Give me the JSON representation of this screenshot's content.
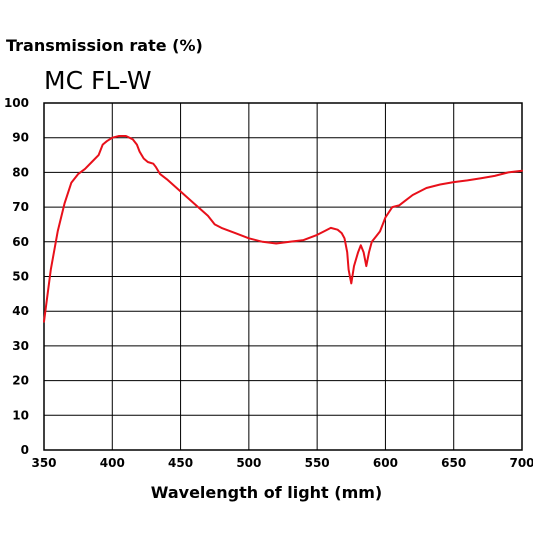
{
  "chart_data": {
    "type": "line",
    "title": "MC FL-W",
    "ylabel": "Transmission rate (%)",
    "xlabel": "Wavelength of light (mm)",
    "xlim": [
      350,
      700
    ],
    "ylim": [
      0,
      100
    ],
    "x_ticks": [
      350,
      400,
      450,
      500,
      550,
      600,
      650,
      700
    ],
    "y_ticks": [
      0,
      10,
      20,
      30,
      40,
      50,
      60,
      70,
      80,
      90,
      100
    ],
    "grid": true,
    "series_color": "#e8101a",
    "series": [
      {
        "x": [
          350,
          355,
          360,
          365,
          370,
          375,
          380,
          385,
          390,
          393,
          396,
          400,
          405,
          410,
          415,
          418,
          420,
          423,
          426,
          430,
          432,
          435,
          440,
          450,
          460,
          470,
          475,
          480,
          490,
          500,
          510,
          520,
          530,
          540,
          550,
          555,
          560,
          565,
          568,
          570,
          572,
          573,
          574,
          575,
          577,
          580,
          582,
          584,
          586,
          588,
          590,
          593,
          596,
          600,
          605,
          610,
          615,
          620,
          630,
          640,
          650,
          660,
          670,
          680,
          690,
          700
        ],
        "values": [
          37,
          52,
          63,
          71,
          77,
          79.5,
          81,
          83,
          85,
          88,
          89,
          90,
          90.5,
          90.5,
          89.5,
          88,
          86,
          84,
          83,
          82.5,
          81.5,
          79.5,
          78,
          74.5,
          71,
          67.5,
          65,
          64,
          62.5,
          61,
          60,
          59.5,
          60,
          60.5,
          62,
          63,
          64,
          63.5,
          62.5,
          61,
          57,
          52,
          50,
          48,
          53,
          57,
          59,
          57,
          53,
          57,
          60,
          61.5,
          63,
          67,
          70,
          70.5,
          72,
          73.5,
          75.5,
          76.5,
          77.2,
          77.7,
          78.3,
          79,
          80,
          80.5
        ]
      }
    ]
  }
}
